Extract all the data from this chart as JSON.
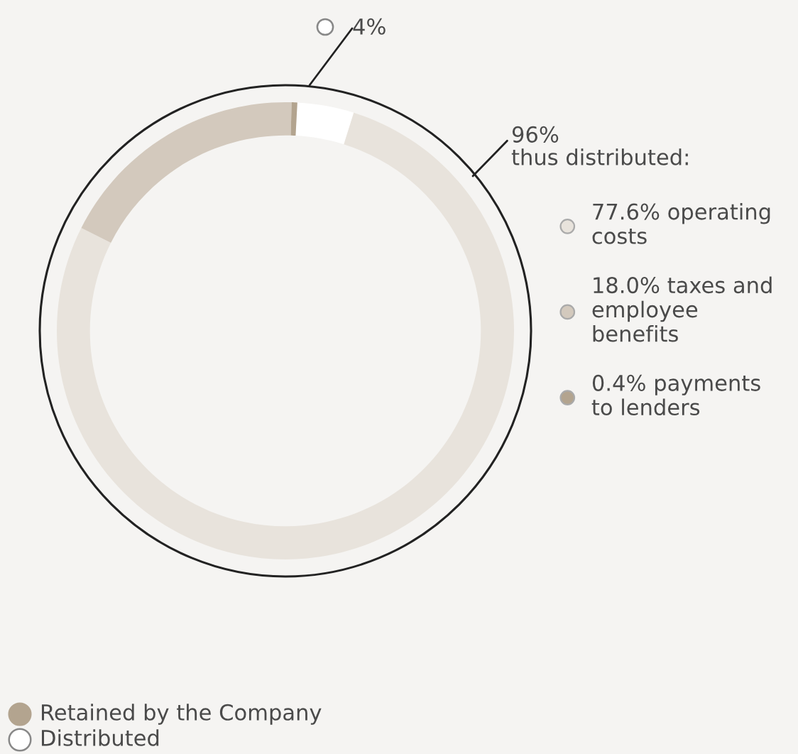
{
  "chart_data": {
    "type": "donut",
    "categories": [
      "4%",
      "77.6% operating\ncosts",
      "18.0% taxes and\nemployee\nbenefits",
      "0.4% payments\nto lenders"
    ],
    "values": [
      4,
      77.6,
      18.0,
      0.4
    ],
    "colors": [
      "#ffffff",
      "#e8e3dc",
      "#d3c9bd",
      "#b3a48f"
    ],
    "legend": "right",
    "annotations": [
      "96%\nthus distributed:",
      "Retained by the Company",
      "Distributed"
    ]
  }
}
